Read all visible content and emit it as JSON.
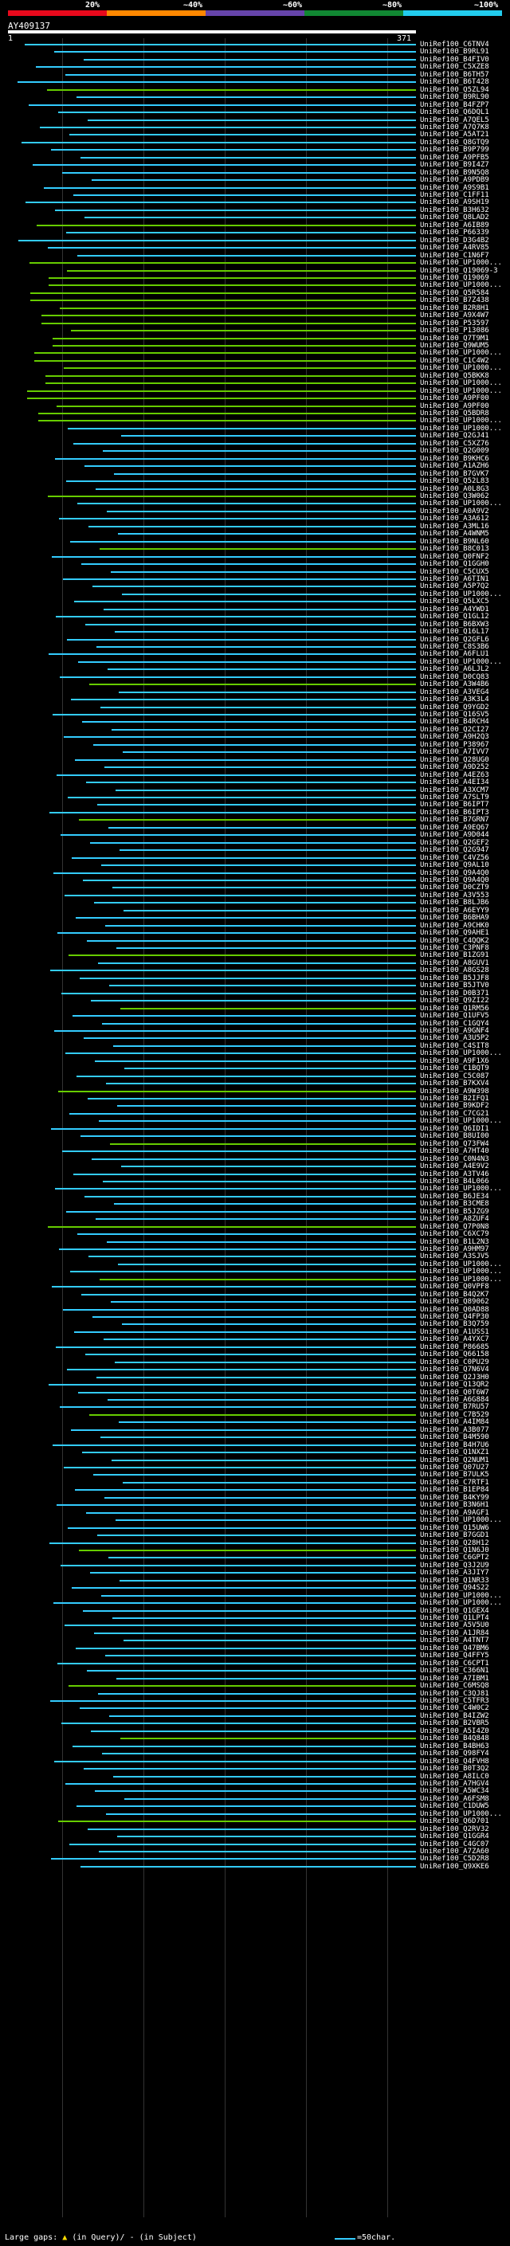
{
  "scale": {
    "labels": [
      "20%",
      "~40%",
      "~60%",
      "~80%",
      "~100%"
    ],
    "colors": [
      "#e8091c",
      "#ff8800",
      "#6644aa",
      "#118833",
      "#22ccee"
    ]
  },
  "query": {
    "id": "AY409137",
    "start": "1",
    "end": "371"
  },
  "colors": {
    "background": "#000000",
    "hit_line": "#33ccff",
    "alt_line": "#66cc00",
    "gap_marker": "#ffdd00"
  },
  "hits": [
    "UniRef100_C6TNV4",
    "UniRef100_B9RL91",
    "UniRef100_B4FIV0",
    "UniRef100_C5XZE8",
    "UniRef100_B6TH57",
    "UniRef100_B6T428",
    "UniRef100_Q5ZL94",
    "UniRef100_B9RL90",
    "UniRef100_B4FZP7",
    "UniRef100_Q6DQL1",
    "UniRef100_A7QEL5",
    "UniRef100_A7Q7K8",
    "UniRef100_A5AT21",
    "UniRef100_Q8GTQ9",
    "UniRef100_B9P799",
    "UniRef100_A9PFB5",
    "UniRef100_B9I4Z7",
    "UniRef100_B9N5Q8",
    "UniRef100_A9PDB9",
    "UniRef100_A9S9B1",
    "UniRef100_C1FF11",
    "UniRef100_A9SH19",
    "UniRef100_B3H632",
    "UniRef100_Q8LAD2",
    "UniRef100_A6IB89",
    "UniRef100_P66339",
    "UniRef100_D3G4B2",
    "UniRef100_A4RV85",
    "UniRef100_C1N6F7",
    "UniRef100_UP1000...",
    "UniRef100_Q19069-3",
    "UniRef100_Q19069",
    "UniRef100_UP1000...",
    "UniRef100_Q5R584",
    "UniRef100_B7Z438",
    "UniRef100_B2R8H1",
    "UniRef100_A9X4W7",
    "UniRef100_P53597",
    "UniRef100_P13086",
    "UniRef100_Q7T9M1",
    "UniRef100_Q9WUM5",
    "UniRef100_UP1000...",
    "UniRef100_C1C4W2",
    "UniRef100_UP1000...",
    "UniRef100_Q5BKK8",
    "UniRef100_UP1000...",
    "UniRef100_UP1000...",
    "UniRef100_A9PF00",
    "UniRef100_A9PF00",
    "UniRef100_Q5BDR8",
    "UniRef100_UP1000...",
    "UniRef100_UP1000...",
    "UniRef100_Q2GJ41",
    "UniRef100_C5XZ76",
    "UniRef100_Q2G009",
    "UniRef100_B9KHC6",
    "UniRef100_A1AZH6",
    "UniRef100_B7GVK7",
    "UniRef100_Q52L83",
    "UniRef100_A0L8G3",
    "UniRef100_Q3W062",
    "UniRef100_UP1000...",
    "UniRef100_A0A9V2",
    "UniRef100_A3A612",
    "UniRef100_A3ML16",
    "UniRef100_A4WNM5",
    "UniRef100_B9NL60",
    "UniRef100_B8C013",
    "UniRef100_Q0FNF2",
    "UniRef100_Q1GGH0",
    "UniRef100_C5CUX5",
    "UniRef100_A6TIN1",
    "UniRef100_A5P7Q2",
    "UniRef100_UP1000...",
    "UniRef100_Q5LXC5",
    "UniRef100_A4YWD1",
    "UniRef100_Q1GL12",
    "UniRef100_B6BXW3",
    "UniRef100_Q16L17",
    "UniRef100_Q2GFL6",
    "UniRef100_C8S3B6",
    "UniRef100_A6FLU1",
    "UniRef100_UP1000...",
    "UniRef100_A6LJL2",
    "UniRef100_D0CQ83",
    "UniRef100_A3W4B6",
    "UniRef100_A3VEG4",
    "UniRef100_A3K3L4",
    "UniRef100_Q9YGD2",
    "UniRef100_Q16SV5",
    "UniRef100_B4RCH4",
    "UniRef100_Q2CI27",
    "UniRef100_A9H2Q3",
    "UniRef100_P38967",
    "UniRef100_A7IVV7",
    "UniRef100_Q28UG0",
    "UniRef100_A9D252",
    "UniRef100_A4EZ63",
    "UniRef100_A4EI34",
    "UniRef100_A3XCM7",
    "UniRef100_A7SLT9",
    "UniRef100_B6IPT7",
    "UniRef100_B6IPT3",
    "UniRef100_B7GRN7",
    "UniRef100_A9EQ67",
    "UniRef100_A9D044",
    "UniRef100_Q2GEF2",
    "UniRef100_Q2G947",
    "UniRef100_C4VZ56",
    "UniRef100_Q9AL10",
    "UniRef100_Q9A4Q0",
    "UniRef100_Q9A4Q0",
    "UniRef100_D0CZT9",
    "UniRef100_A3V553",
    "UniRef100_B8LJB6",
    "UniRef100_A6EYY9",
    "UniRef100_B6BHA9",
    "UniRef100_A9CHK0",
    "UniRef100_Q9AHE1",
    "UniRef100_C4QQK2",
    "UniRef100_C3PNF8",
    "UniRef100_B1ZG91",
    "UniRef100_A8GUV1",
    "UniRef100_A8GS28",
    "UniRef100_B5JJF8",
    "UniRef100_B5JTV0",
    "UniRef100_D0B371",
    "UniRef100_Q9ZI22",
    "UniRef100_Q1RM56",
    "UniRef100_Q1UFV5",
    "UniRef100_C1GQY4",
    "UniRef100_A9GNF4",
    "UniRef100_A3U5P2",
    "UniRef100_C4SIT8",
    "UniRef100_UP1000...",
    "UniRef100_A9F1X6",
    "UniRef100_C1BQT9",
    "UniRef100_C5C087",
    "UniRef100_B7KXV4",
    "UniRef100_A9W398",
    "UniRef100_B2IFQ1",
    "UniRef100_B9KDF2",
    "UniRef100_C7CG21",
    "UniRef100_UP1000...",
    "UniRef100_Q6IDI1",
    "UniRef100_B8UI00",
    "UniRef100_Q73FW4",
    "UniRef100_A7HT40",
    "UniRef100_C0N4N3",
    "UniRef100_A4E9V2",
    "UniRef100_A3TV46",
    "UniRef100_B4L066",
    "UniRef100_UP1000...",
    "UniRef100_B6JE34",
    "UniRef100_B3CME8",
    "UniRef100_B5JZG9",
    "UniRef100_A8ZUF4",
    "UniRef100_Q7P0N8",
    "UniRef100_C6XC79",
    "UniRef100_B1L2N3",
    "UniRef100_A9HM97",
    "UniRef100_A3SJV5",
    "UniRef100_UP1000...",
    "UniRef100_UP1000...",
    "UniRef100_UP1000...",
    "UniRef100_Q0VPF8",
    "UniRef100_B4Q2K7",
    "UniRef100_Q89062",
    "UniRef100_Q0AD88",
    "UniRef100_Q4FP30",
    "UniRef100_B3Q759",
    "UniRef100_A1USS1",
    "UniRef100_A4YXC7",
    "UniRef100_P86685",
    "UniRef100_Q66158",
    "UniRef100_C0PU29",
    "UniRef100_Q7N6V4",
    "UniRef100_Q2J3H0",
    "UniRef100_Q13QR2",
    "UniRef100_Q0T6W7",
    "UniRef100_A6G884",
    "UniRef100_B7RU57",
    "UniRef100_C7B529",
    "UniRef100_A4IM84",
    "UniRef100_A3B077",
    "UniRef100_B4M590",
    "UniRef100_B4H7U6",
    "UniRef100_Q1NXZ1",
    "UniRef100_Q2NUM1",
    "UniRef100_Q07U27",
    "UniRef100_B7ULK5",
    "UniRef100_C7RTF1",
    "UniRef100_B1EP84",
    "UniRef100_B4KY99",
    "UniRef100_B3N6H1",
    "UniRef100_A9AGF1",
    "UniRef100_UP1000...",
    "UniRef100_Q15UW6",
    "UniRef100_B7GGD1",
    "UniRef100_Q28H12",
    "UniRef100_Q1N6J0",
    "UniRef100_C6GPT2",
    "UniRef100_Q3J2U9",
    "UniRef100_A3JIY7",
    "UniRef100_Q1NR33",
    "UniRef100_Q94S22",
    "UniRef100_UP1000...",
    "UniRef100_UP1000...",
    "UniRef100_Q1GEX4",
    "UniRef100_Q1LPT4",
    "UniRef100_A5V5U0",
    "UniRef100_A1JR84",
    "UniRef100_A4TNT7",
    "UniRef100_Q47BM6",
    "UniRef100_Q4FFY5",
    "UniRef100_C6CPT1",
    "UniRef100_C366N1",
    "UniRef100_A7IBM1",
    "UniRef100_C6MSQ8",
    "UniRef100_C3QJ81",
    "UniRef100_C5TFR3",
    "UniRef100_C4W0C2",
    "UniRef100_B4IZW2",
    "UniRef100_B2VBR5",
    "UniRef100_A5I4Z0",
    "UniRef100_B4Q848",
    "UniRef100_B4BH63",
    "UniRef100_Q98FY4",
    "UniRef100_Q4FVH8",
    "UniRef100_B0T3Q2",
    "UniRef100_A8ILC0",
    "UniRef100_A7HGV4",
    "UniRef100_A5WC34",
    "UniRef100_A6FSM8",
    "UniRef100_C1DUW5",
    "UniRef100_UP1000...",
    "UniRef100_Q6D701",
    "UniRef100_Q2RV32",
    "UniRef100_Q1GGR4",
    "UniRef100_C4GC07",
    "UniRef100_A7ZA60",
    "UniRef100_C5D2R8",
    "UniRef100_Q9XKE6"
  ],
  "footer": {
    "large_gaps": "Large gaps:",
    "legend_items": "(in Query)/ - (in Subject)",
    "scale_label": "=50char."
  }
}
